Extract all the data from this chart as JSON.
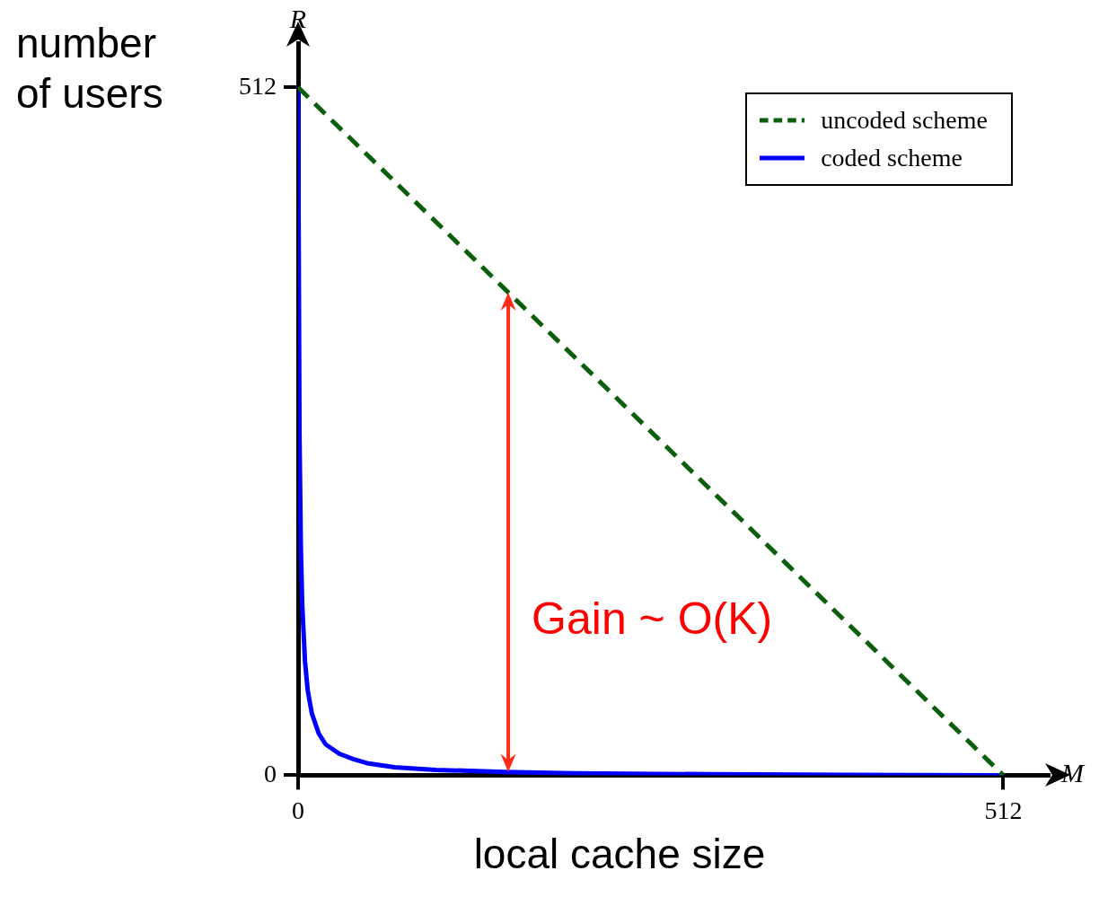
{
  "chart_data": {
    "type": "line",
    "xlabel": "local cache size",
    "ylabel": "number of users",
    "x": [
      0,
      1,
      2,
      3,
      5,
      7,
      10,
      15,
      20,
      30,
      40,
      50,
      70,
      100,
      150,
      200,
      300,
      400,
      512
    ],
    "xlim": [
      0,
      545
    ],
    "ylim": [
      0,
      545
    ],
    "xticks": [
      0,
      512
    ],
    "yticks": [
      0,
      512
    ],
    "grid": false,
    "legend": "top right",
    "marker": "none",
    "series": [
      {
        "name": "uncoded scheme",
        "color": "#0b5e0b",
        "line_style": "dashed",
        "x": [
          0,
          512
        ],
        "values": [
          512,
          0
        ]
      },
      {
        "name": "coded scheme",
        "color": "#0000ff",
        "line_style": "solid",
        "values": [
          512,
          256,
          170,
          127,
          85,
          63,
          46,
          31,
          23,
          16,
          12,
          9,
          6,
          4,
          2.5,
          1.5,
          0.7,
          0.3,
          0
        ]
      }
    ],
    "annotations": [
      "R",
      "M",
      "Gain ~ O(K)"
    ]
  }
}
